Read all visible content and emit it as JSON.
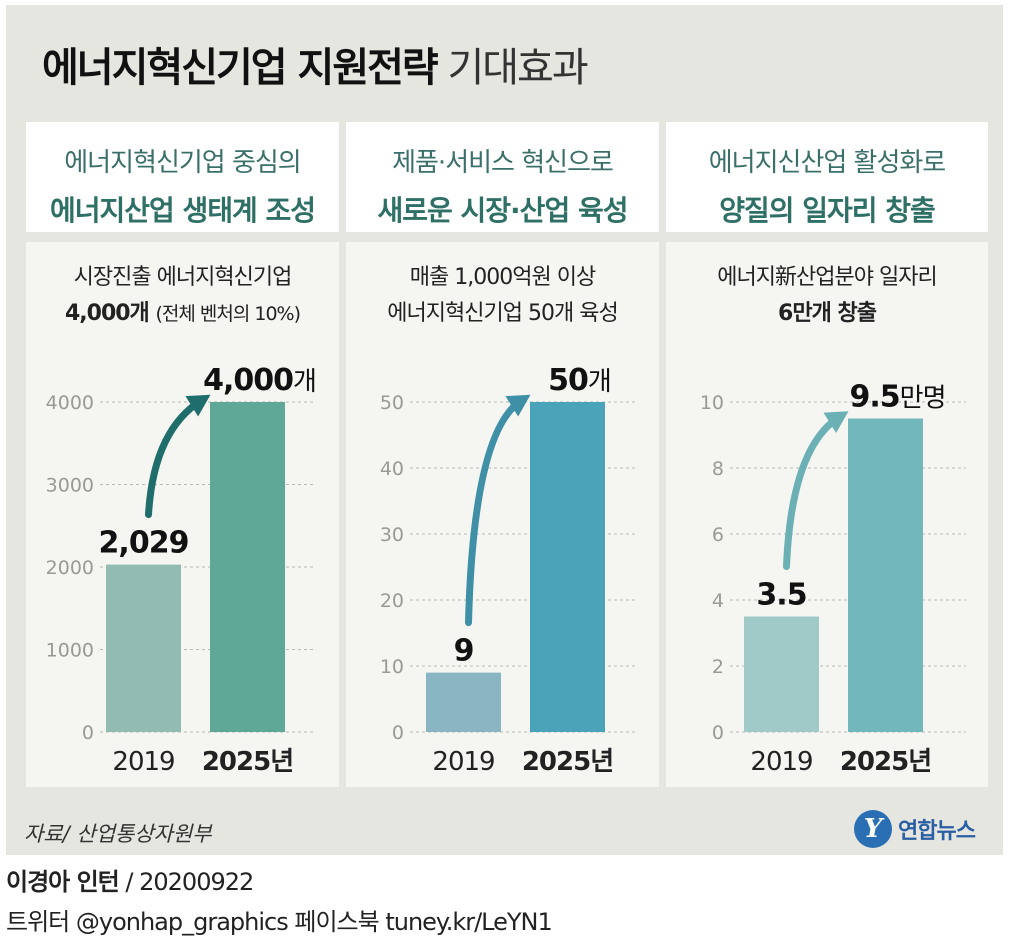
{
  "title": {
    "bold": "에너지혁신기업 지원전략",
    "light": "기대효과"
  },
  "panels": [
    {
      "header_line1": "에너지혁신기업 중심의",
      "header_line2": "에너지산업 생태계 조성",
      "desc_line1": "시장진출 에너지혁신기업",
      "desc_line2": "4,000개",
      "desc_line2_note": "(전체 벤처의 10%)"
    },
    {
      "header_line1": "제품·서비스 혁신으로",
      "header_line2": "새로운 시장·산업 육성",
      "desc_line1": "매출 1,000억원 이상",
      "desc_line2": "에너지혁신기업 50개 육성",
      "desc_line2_note": ""
    },
    {
      "header_line1": "에너지신산업 활성화로",
      "header_line2": "양질의 일자리 창출",
      "desc_line1": "에너지新산업분야 일자리",
      "desc_line2": "6만개 창출",
      "desc_line2_note": ""
    }
  ],
  "chart_data": [
    {
      "type": "bar",
      "categories": [
        "2019",
        "2025년"
      ],
      "values": [
        2029,
        4000
      ],
      "value_labels": [
        "2,029",
        "4,000"
      ],
      "unit": "개",
      "ylim": [
        0,
        4000
      ],
      "yticks": [
        0,
        1000,
        2000,
        3000,
        4000
      ],
      "grid": true,
      "colors": [
        "#92bcb1",
        "#5fa797"
      ],
      "arrow_color": "#1f6e6b"
    },
    {
      "type": "bar",
      "categories": [
        "2019",
        "2025년"
      ],
      "values": [
        9,
        50
      ],
      "value_labels": [
        "9",
        "50"
      ],
      "unit": "개",
      "ylim": [
        0,
        50
      ],
      "yticks": [
        0,
        10,
        20,
        30,
        40,
        50
      ],
      "grid": true,
      "colors": [
        "#8ab6c4",
        "#4aa3b8"
      ],
      "arrow_color": "#3f8fa6"
    },
    {
      "type": "bar",
      "categories": [
        "2019",
        "2025년"
      ],
      "values": [
        3.5,
        9.5
      ],
      "value_labels": [
        "3.5",
        "9.5"
      ],
      "unit": "만명",
      "ylim": [
        0,
        10
      ],
      "yticks": [
        0,
        2,
        4,
        6,
        8,
        10
      ],
      "grid": true,
      "colors": [
        "#9fcac8",
        "#72b7bb"
      ],
      "arrow_color": "#6ab0b5"
    }
  ],
  "source": "자료/ 산업통상자원부",
  "logo": {
    "mark": "Y",
    "text": "연합뉴스"
  },
  "credit": {
    "name": "이경아 인턴",
    "date": " / 20200922"
  },
  "social": "트위터 @yonhap_graphics  페이스북 tuney.kr/LeYN1"
}
